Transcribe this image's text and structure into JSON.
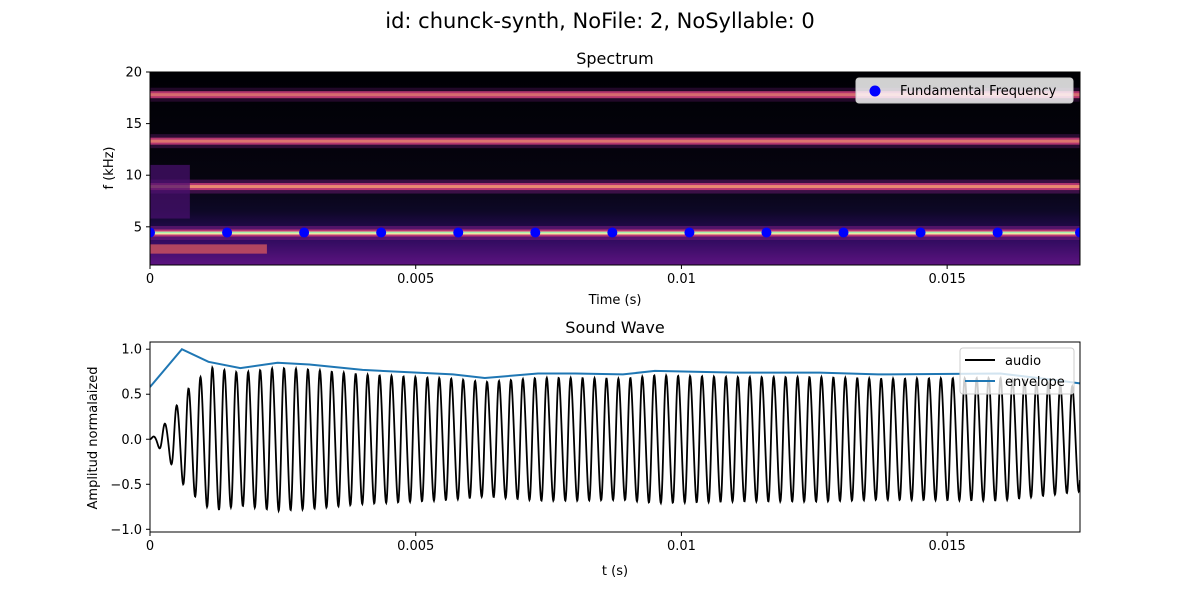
{
  "figure": {
    "suptitle": "id: chunck-synth, NoFile: 2, NoSyllable: 0"
  },
  "chart_data": [
    {
      "type": "heatmap",
      "title": "Spectrum",
      "xlabel": "Time (s)",
      "ylabel": "f (kHz)",
      "xlim": [
        0,
        0.0175
      ],
      "ylim": [
        1.3,
        20
      ],
      "xticks": [
        0,
        0.005,
        0.01,
        0.015
      ],
      "xtick_labels": [
        "0",
        "0.005",
        "0.01",
        "0.015"
      ],
      "yticks": [
        5,
        10,
        15,
        20
      ],
      "ytick_labels": [
        "5",
        "10",
        "15",
        "20"
      ],
      "colormap": "magma",
      "harmonic_bands_khz": [
        {
          "f": 4.4,
          "intensity": 1.0
        },
        {
          "f": 8.9,
          "intensity": 0.8
        },
        {
          "f": 13.3,
          "intensity": 0.6
        },
        {
          "f": 17.8,
          "intensity": 0.5
        }
      ],
      "legend_position": "upper right",
      "series": [
        {
          "name": "Fundamental Frequency",
          "marker": "circle",
          "color": "#0000ff",
          "x": [
            0,
            0.00145,
            0.0029,
            0.00435,
            0.0058,
            0.00725,
            0.0087,
            0.01015,
            0.0116,
            0.01305,
            0.0145,
            0.01595,
            0.0175
          ],
          "y": [
            4.45,
            4.45,
            4.45,
            4.45,
            4.45,
            4.45,
            4.45,
            4.45,
            4.45,
            4.45,
            4.45,
            4.45,
            4.45
          ]
        }
      ]
    },
    {
      "type": "line",
      "title": "Sound Wave",
      "xlabel": "t (s)",
      "ylabel": "Amplitud normalaized",
      "xlim": [
        0,
        0.0175
      ],
      "ylim": [
        -1.03,
        1.08
      ],
      "xticks": [
        0,
        0.005,
        0.01,
        0.015
      ],
      "xtick_labels": [
        "0",
        "0.005",
        "0.01",
        "0.015"
      ],
      "yticks": [
        -1.0,
        -0.5,
        0.0,
        0.5,
        1.0
      ],
      "ytick_labels": [
        "−1.0",
        "−0.5",
        "0.0",
        "0.5",
        "1.0"
      ],
      "legend_position": "upper right",
      "series": [
        {
          "name": "audio",
          "color": "#000000",
          "frequency_hz": 4450,
          "description_points": "oscillation bounded by envelope",
          "x": [
            0,
            0.0006,
            0.001,
            0.0017,
            0.0024,
            0.003,
            0.004,
            0.0057,
            0.0063,
            0.0073,
            0.0095,
            0.011,
            0.0126,
            0.0137,
            0.016,
            0.0175
          ],
          "y": [
            0.0,
            0.6,
            1.0,
            0.82,
            0.85,
            0.83,
            0.77,
            0.72,
            0.66,
            0.72,
            0.74,
            0.72,
            0.72,
            0.7,
            0.72,
            0.6
          ]
        },
        {
          "name": "envelope",
          "color": "#1f77b4",
          "x": [
            0,
            0.0006,
            0.0011,
            0.0017,
            0.0024,
            0.003,
            0.004,
            0.0057,
            0.0063,
            0.0073,
            0.008,
            0.0089,
            0.0095,
            0.011,
            0.0126,
            0.0137,
            0.016,
            0.017,
            0.0175
          ],
          "y": [
            0.58,
            1.0,
            0.86,
            0.79,
            0.85,
            0.83,
            0.77,
            0.72,
            0.68,
            0.73,
            0.73,
            0.72,
            0.76,
            0.74,
            0.74,
            0.72,
            0.73,
            0.66,
            0.62
          ]
        }
      ]
    }
  ]
}
